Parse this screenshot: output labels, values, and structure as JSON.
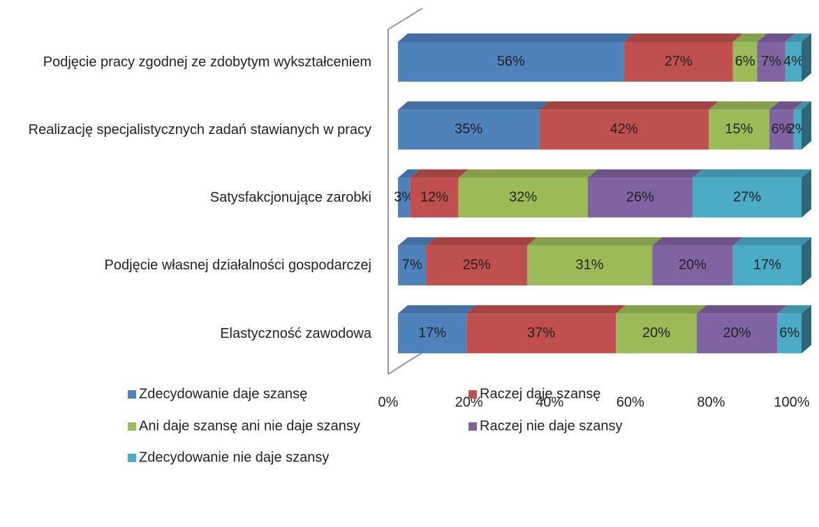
{
  "chart_data": {
    "type": "stacked-bar-3d",
    "categories": [
      "Podjęcie pracy zgodnej ze zdobytym wykształceniem",
      "Realizację specjalistycznych zadań stawianych w pracy",
      "Satysfakcjonujące zarobki",
      "Podjęcie własnej działalności gospodarczej",
      "Elastyczność zawodowa"
    ],
    "series": [
      {
        "name": "Zdecydowanie daje szansę",
        "color": "#4f81bd",
        "values": [
          56,
          35,
          3,
          7,
          17
        ],
        "value_labels": [
          "56%",
          "35%",
          "3%",
          "7%",
          "17%"
        ]
      },
      {
        "name": "Raczej daje szansę",
        "color": "#c0504d",
        "values": [
          27,
          42,
          12,
          25,
          37
        ],
        "value_labels": [
          "27%",
          "42%",
          "12%",
          "25%",
          "37%"
        ]
      },
      {
        "name": "Ani daje szansę ani nie daje szansy",
        "color": "#9bbb59",
        "values": [
          6,
          15,
          32,
          31,
          20
        ],
        "value_labels": [
          "6%",
          "15%",
          "32%",
          "31%",
          "20%"
        ]
      },
      {
        "name": "Raczej nie daje szansy",
        "color": "#8064a2",
        "values": [
          7,
          6,
          26,
          20,
          20
        ],
        "value_labels": [
          "7%",
          "6%",
          "26%",
          "20%",
          "20%"
        ]
      },
      {
        "name": "Zdecydowanie nie daje szansy",
        "color": "#4bacc6",
        "values": [
          4,
          2,
          27,
          17,
          6
        ],
        "value_labels": [
          "4%",
          "2%",
          "27%",
          "17%",
          "6%"
        ]
      }
    ],
    "xlim": [
      0,
      100
    ],
    "xticks": [
      {
        "value": 0,
        "label": "0%"
      },
      {
        "value": 20,
        "label": "20%"
      },
      {
        "value": 40,
        "label": "40%"
      },
      {
        "value": 60,
        "label": "60%"
      },
      {
        "value": 80,
        "label": "80%"
      },
      {
        "value": 100,
        "label": "100%"
      }
    ]
  }
}
